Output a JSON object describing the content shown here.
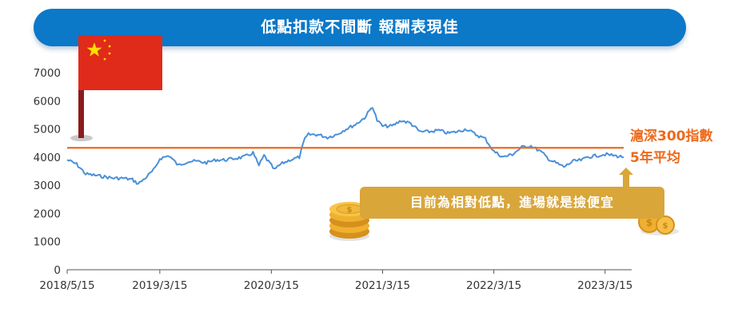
{
  "banner": {
    "title": "低點扣款不間斷 報酬表現佳"
  },
  "annotation": {
    "avg_line_label": [
      "滬深300指數",
      "5年平均"
    ],
    "callout": "目前為相對低點，進場就是撿便宜"
  },
  "colors": {
    "banner": "#0b78c8",
    "price_line": "#4a90d9",
    "avg_line": "#ee6a1c",
    "callout": "#d9a63a",
    "flag_red": "#e02a1a",
    "star_yellow": "#ffde00"
  },
  "icons": [
    "china-flag-icon",
    "coin-stack-icon",
    "coin-pile-icon"
  ],
  "chart_data": {
    "type": "line",
    "title": "",
    "xlabel": "",
    "ylabel": "",
    "ylim": [
      0,
      7000
    ],
    "yticks": [
      0,
      1000,
      2000,
      3000,
      4000,
      5000,
      6000,
      7000
    ],
    "xticks": [
      "2018/5/15",
      "2019/3/15",
      "2020/3/15",
      "2021/3/15",
      "2022/3/15",
      "2023/3/15"
    ],
    "xrange": [
      "2018/5/15",
      "2023/5/15"
    ],
    "grid": false,
    "series": [
      {
        "name": "",
        "x": [
          "2018/5/15",
          "2018/6/15",
          "2018/7/15",
          "2018/8/15",
          "2018/9/15",
          "2018/10/15",
          "2018/11/15",
          "2018/12/15",
          "2019/1/3",
          "2019/1/31",
          "2019/2/28",
          "2019/3/15",
          "2019/4/15",
          "2019/5/15",
          "2019/6/15",
          "2019/7/15",
          "2019/8/15",
          "2019/9/15",
          "2019/10/15",
          "2019/11/15",
          "2019/12/15",
          "2020/1/15",
          "2020/2/3",
          "2020/2/20",
          "2020/3/15",
          "2020/3/25",
          "2020/4/15",
          "2020/5/15",
          "2020/6/15",
          "2020/7/3",
          "2020/7/15",
          "2020/8/15",
          "2020/9/15",
          "2020/10/15",
          "2020/11/15",
          "2020/12/15",
          "2021/1/15",
          "2021/2/10",
          "2021/2/25",
          "2021/3/15",
          "2021/4/15",
          "2021/5/15",
          "2021/6/15",
          "2021/7/15",
          "2021/8/15",
          "2021/9/15",
          "2021/10/15",
          "2021/11/15",
          "2021/12/15",
          "2022/1/15",
          "2022/2/15",
          "2022/3/15",
          "2022/4/15",
          "2022/5/15",
          "2022/6/15",
          "2022/7/15",
          "2022/8/15",
          "2022/9/15",
          "2022/10/31",
          "2022/11/30",
          "2022/12/31",
          "2023/1/15",
          "2023/2/15",
          "2023/3/15",
          "2023/4/15",
          "2023/5/15"
        ],
        "y": [
          3900,
          3750,
          3400,
          3350,
          3300,
          3250,
          3250,
          3200,
          3050,
          3300,
          3600,
          3950,
          4050,
          3700,
          3850,
          3850,
          3800,
          3900,
          3900,
          3950,
          4000,
          4150,
          3700,
          4050,
          3700,
          3550,
          3750,
          3900,
          4000,
          4650,
          4800,
          4800,
          4700,
          4800,
          5000,
          5150,
          5400,
          5800,
          5300,
          5100,
          5100,
          5300,
          5200,
          4900,
          4900,
          4950,
          4850,
          4900,
          5000,
          4800,
          4650,
          4200,
          4000,
          4100,
          4350,
          4400,
          4200,
          3900,
          3650,
          3850,
          3900,
          4000,
          4050,
          4100,
          4050,
          4000
        ]
      },
      {
        "name": "滬深300指數 5年平均",
        "x": [
          "2018/5/15",
          "2023/5/15"
        ],
        "y": [
          4330,
          4330
        ]
      }
    ]
  }
}
